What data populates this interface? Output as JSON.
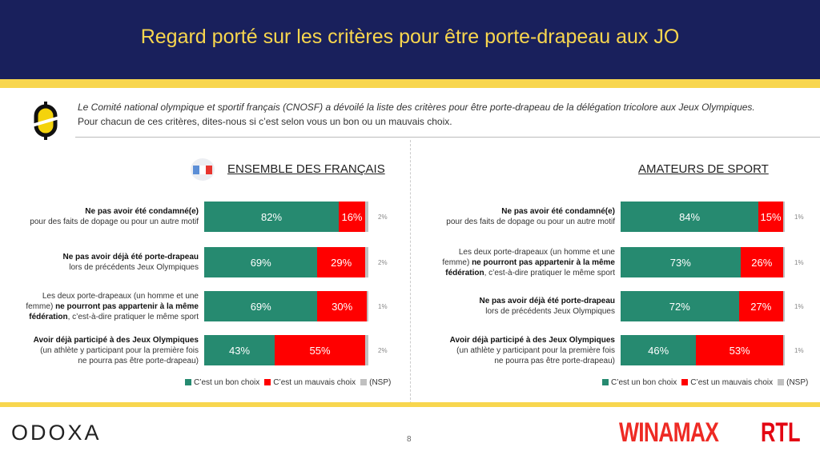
{
  "title": "Regard porté sur les critères pour être porte-drapeau aux JO",
  "intro": {
    "line1": "Le Comité national olympique et sportif français (CNOSF) a dévoilé la liste des critères pour être porte-drapeau de la délégation tricolore aux Jeux Olympiques.",
    "line2": "Pour chacun de ces critères, dites-nous si c’est selon vous un bon ou un mauvais choix."
  },
  "colors": {
    "good": "#268a70",
    "bad": "#ff0000",
    "nsp": "#c0c0c0",
    "navy": "#19205c",
    "yellow": "#f8d64e"
  },
  "legend": {
    "good": "C’est un bon choix",
    "bad": "C’est un mauvais choix",
    "nsp": "(NSP)"
  },
  "panels": [
    {
      "title": "ENSEMBLE DES FRANÇAIS",
      "rows": [
        {
          "label": [
            {
              "t": "Ne pas avoir été condamné(e)",
              "b": true
            },
            {
              "t": "\npour des faits de dopage ou pour un autre motif",
              "b": false
            }
          ],
          "good": 82,
          "bad": 16,
          "nsp": 2,
          "good_label": "82%",
          "bad_label": "16%",
          "nsp_label": "2%"
        },
        {
          "label": [
            {
              "t": "Ne pas avoir déjà été porte-drapeau",
              "b": true
            },
            {
              "t": "\nlors de précédents Jeux Olympiques",
              "b": false
            }
          ],
          "good": 69,
          "bad": 29,
          "nsp": 2,
          "good_label": "69%",
          "bad_label": "29%",
          "nsp_label": "2%"
        },
        {
          "label": [
            {
              "t": "Les deux porte-drapeaux (un homme et une\nfemme) ",
              "b": false
            },
            {
              "t": "ne pourront pas appartenir à la même\nfédération",
              "b": true
            },
            {
              "t": ", c’est-à-dire pratiquer le même sport",
              "b": false
            }
          ],
          "good": 69,
          "bad": 30,
          "nsp": 1,
          "good_label": "69%",
          "bad_label": "30%",
          "nsp_label": "1%"
        },
        {
          "label": [
            {
              "t": "Avoir déjà participé à des Jeux Olympiques",
              "b": true
            },
            {
              "t": "\n(un athlète y participant pour la première fois\nne pourra pas être porte-drapeau)",
              "b": false
            }
          ],
          "good": 43,
          "bad": 55,
          "nsp": 2,
          "good_label": "43%",
          "bad_label": "55%",
          "nsp_label": "2%"
        }
      ]
    },
    {
      "title": "AMATEURS DE SPORT",
      "rows": [
        {
          "label": [
            {
              "t": "Ne pas avoir été condamné(e)",
              "b": true
            },
            {
              "t": "\npour des faits de dopage ou pour un autre motif",
              "b": false
            }
          ],
          "good": 84,
          "bad": 15,
          "nsp": 1,
          "good_label": "84%",
          "bad_label": "15%",
          "nsp_label": "1%"
        },
        {
          "label": [
            {
              "t": "Les deux porte-drapeaux (un homme et une\nfemme) ",
              "b": false
            },
            {
              "t": "ne pourront pas appartenir à la même\nfédération",
              "b": true
            },
            {
              "t": ", c’est-à-dire pratiquer le même sport",
              "b": false
            }
          ],
          "good": 73,
          "bad": 26,
          "nsp": 1,
          "good_label": "73%",
          "bad_label": "26%",
          "nsp_label": "1%"
        },
        {
          "label": [
            {
              "t": "Ne pas avoir déjà été porte-drapeau",
              "b": true
            },
            {
              "t": "\nlors de précédents Jeux Olympiques",
              "b": false
            }
          ],
          "good": 72,
          "bad": 27,
          "nsp": 1,
          "good_label": "72%",
          "bad_label": "27%",
          "nsp_label": "1%"
        },
        {
          "label": [
            {
              "t": "Avoir déjà participé à des Jeux Olympiques",
              "b": true
            },
            {
              "t": "\n(un athlète y participant pour la première fois\nne pourra pas être porte-drapeau)",
              "b": false
            }
          ],
          "good": 46,
          "bad": 53,
          "nsp": 1,
          "good_label": "46%",
          "bad_label": "53%",
          "nsp_label": "1%"
        }
      ]
    }
  ],
  "footer": {
    "odoxa": "ODOXA",
    "page": "8",
    "winamax": "WINAMAX",
    "rtl": "RTL"
  }
}
